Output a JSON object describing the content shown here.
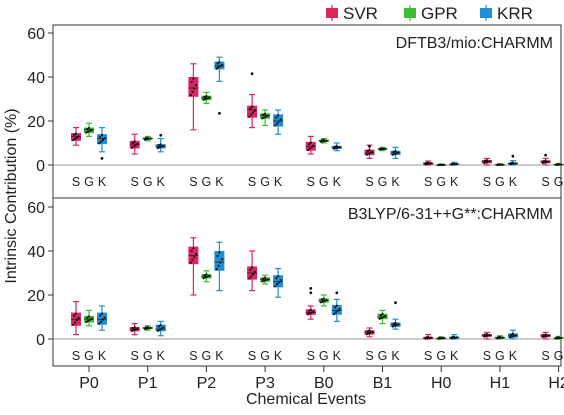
{
  "chart_data": {
    "type": "box",
    "xlabel": "Chemical Events",
    "ylabel": "Intrinsic Contribution (%)",
    "categories": [
      "P0",
      "P1",
      "P2",
      "P3",
      "B0",
      "B1",
      "H0",
      "H1",
      "H2"
    ],
    "model_letters": [
      "S",
      "G",
      "K"
    ],
    "ylim": [
      -5,
      61
    ],
    "yticks": [
      0,
      20,
      40,
      60
    ],
    "legend": {
      "placement": "top-right"
    },
    "series": [
      {
        "name": "SVR",
        "color": "#e0245e"
      },
      {
        "name": "GPR",
        "color": "#3bbf2e"
      },
      {
        "name": "KRR",
        "color": "#1f8fd6"
      }
    ],
    "panels": [
      {
        "label": "DFTB3/mio:CHARMM",
        "boxes": [
          [
            [
              9,
              11,
              13,
              14.5,
              17
            ],
            [
              13,
              14.5,
              16,
              17,
              19
            ],
            [
              6,
              9.5,
              12,
              14,
              17
            ]
          ],
          [
            [
              5,
              7.5,
              9.5,
              11,
              14
            ],
            [
              11,
              11.5,
              12,
              12.5,
              13
            ],
            [
              6,
              7.5,
              8.5,
              9.5,
              12
            ]
          ],
          [
            [
              16,
              31,
              35,
              40,
              46
            ],
            [
              28,
              29.5,
              30.5,
              31.5,
              33
            ],
            [
              38,
              43.5,
              45,
              47,
              49
            ]
          ],
          [
            [
              17,
              21.5,
              25,
              27,
              32
            ],
            [
              18,
              21,
              22.5,
              23.5,
              25
            ],
            [
              14,
              17.5,
              20,
              23,
              25
            ]
          ],
          [
            [
              5,
              6.5,
              8.5,
              10.5,
              13
            ],
            [
              10,
              10.5,
              11,
              11.5,
              12
            ],
            [
              6.5,
              7.3,
              8,
              8.7,
              10
            ]
          ],
          [
            [
              3,
              4.5,
              5.5,
              7,
              9
            ],
            [
              6.5,
              7,
              7.3,
              7.6,
              8
            ],
            [
              3,
              4.5,
              5.5,
              6.5,
              8
            ]
          ],
          [
            [
              0,
              0.2,
              0.7,
              1.2,
              1.8
            ],
            [
              0,
              0,
              0,
              0.2,
              0.4
            ],
            [
              0,
              0.1,
              0.4,
              0.7,
              1.2
            ]
          ],
          [
            [
              0,
              0.8,
              1.6,
              2.3,
              3
            ],
            [
              0,
              0,
              0.1,
              0.3,
              0.5
            ],
            [
              0,
              0.3,
              0.6,
              1.1,
              2
            ]
          ],
          [
            [
              0,
              0.8,
              1.5,
              2.1,
              3
            ],
            [
              0,
              0,
              0.2,
              0.4,
              0.7
            ],
            [
              0,
              0.3,
              0.7,
              1.3,
              2
            ]
          ]
        ],
        "outliers": [
          [
            [],
            [],
            [
              3
            ]
          ],
          [
            [],
            [],
            [
              13.5
            ]
          ],
          [
            [],
            [],
            [
              23.5
            ]
          ],
          [
            [
              41.5
            ],
            [],
            []
          ],
          [
            [],
            [],
            []
          ],
          [
            [
              8.5
            ],
            [],
            []
          ],
          [
            [],
            [],
            []
          ],
          [
            [],
            [],
            [
              4
            ]
          ],
          [
            [
              4.5
            ],
            [],
            []
          ]
        ]
      },
      {
        "label": "B3LYP/6-31++G**:CHARMM",
        "boxes": [
          [
            [
              2,
              6,
              9,
              12,
              17
            ],
            [
              6,
              7.5,
              9,
              10.5,
              13
            ],
            [
              4,
              6.5,
              9,
              12,
              15
            ]
          ],
          [
            [
              2,
              3.5,
              4.5,
              5.5,
              7
            ],
            [
              4,
              4.5,
              5,
              5.5,
              6
            ],
            [
              1.5,
              3.5,
              4.5,
              6.5,
              8
            ]
          ],
          [
            [
              20,
              34,
              38,
              42,
              46
            ],
            [
              26,
              27.5,
              28.5,
              29.5,
              31
            ],
            [
              22,
              31,
              35,
              40,
              44
            ]
          ],
          [
            [
              22,
              27,
              30,
              33,
              40
            ],
            [
              25,
              26,
              27,
              28,
              29
            ],
            [
              19,
              23.5,
              26,
              29,
              32
            ]
          ],
          [
            [
              9,
              11,
              12,
              13.5,
              15
            ],
            [
              15,
              16.5,
              17.5,
              18.5,
              20
            ],
            [
              8,
              11,
              13,
              15.5,
              18
            ]
          ],
          [
            [
              1,
              2,
              3,
              4,
              5
            ],
            [
              7,
              9,
              10,
              11.5,
              13
            ],
            [
              4.5,
              5.5,
              6.5,
              7.5,
              9
            ]
          ],
          [
            [
              0,
              0.1,
              0.4,
              1,
              2
            ],
            [
              0,
              0.1,
              0.3,
              0.6,
              1
            ],
            [
              0,
              0.2,
              0.6,
              1.1,
              2
            ]
          ],
          [
            [
              0,
              1,
              1.6,
              2.3,
              3
            ],
            [
              0,
              0.2,
              0.6,
              1,
              1.5
            ],
            [
              0,
              0.6,
              1.5,
              2.5,
              4
            ]
          ],
          [
            [
              0,
              0.8,
              1.5,
              2.2,
              3
            ],
            [
              0,
              0.1,
              0.4,
              0.8,
              1.2
            ],
            [
              0,
              0.5,
              1.2,
              2,
              3
            ]
          ]
        ],
        "outliers": [
          [
            [],
            [],
            []
          ],
          [
            [],
            [],
            []
          ],
          [
            [],
            [],
            []
          ],
          [
            [],
            [],
            []
          ],
          [
            [
              21,
              23
            ],
            [],
            [
              21
            ]
          ],
          [
            [],
            [],
            [
              16.5
            ]
          ],
          [
            [],
            [],
            []
          ],
          [
            [],
            [],
            []
          ],
          [
            [],
            [],
            []
          ]
        ]
      }
    ]
  }
}
